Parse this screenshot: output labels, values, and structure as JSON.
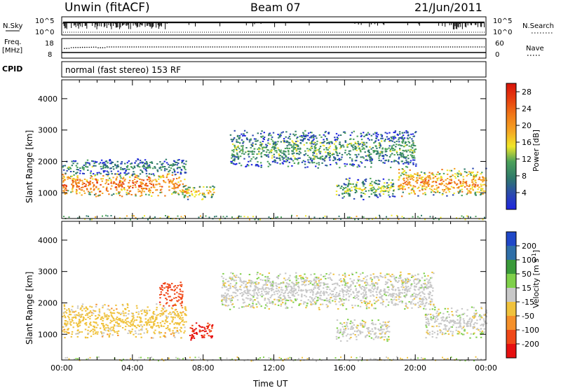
{
  "header": {
    "station": "Unwin (fitACF)",
    "beam": "Beam 07",
    "date": "21/Jun/2011"
  },
  "noise_panel": {
    "left_label": "N.Sky",
    "left_ticks": [
      "10^5",
      "10^0"
    ],
    "right_label": "N.Search",
    "right_ticks": [
      "10^5",
      "10^0"
    ]
  },
  "freq_panel": {
    "left_label": "Freq.",
    "left_unit": "[MHz]",
    "left_ticks": [
      "18",
      "8"
    ],
    "right_label": "Nave",
    "right_ticks": [
      "60",
      "0"
    ],
    "cpid_label": "CPID"
  },
  "cpid_text": "normal (fast stereo) 153 RF",
  "colors": {
    "power_scale": [
      "#1f25e0",
      "#2a48b0",
      "#2f7a6a",
      "#4ca25a",
      "#f0e628",
      "#f5a623",
      "#f07818",
      "#e63c0e",
      "#d8120a"
    ],
    "velocity_scale": [
      "#e61010",
      "#f04818",
      "#f5902a",
      "#f0c23c",
      "#c8c8c8",
      "#7fd04a",
      "#3a9a3a",
      "#2f6fa8",
      "#2048c8"
    ]
  },
  "chart_data": [
    {
      "type": "heatmap",
      "title": "Power",
      "ylabel": "Slant Range [km]",
      "ylim": [
        180,
        4600
      ],
      "yticks": [
        1000,
        2000,
        3000,
        4000
      ],
      "xlim_hours": [
        0,
        24
      ],
      "colorbar": {
        "label": "Power [dB]",
        "ticks": [
          "4",
          "8",
          "12",
          "16",
          "20",
          "24",
          "28"
        ],
        "range": [
          0,
          30
        ]
      },
      "echo_regions_hours_km": [
        {
          "t": [
            0,
            7.0
          ],
          "r": [
            900,
            1650
          ],
          "db": 24
        },
        {
          "t": [
            0,
            7.0
          ],
          "r": [
            1600,
            2100
          ],
          "db": 10
        },
        {
          "t": [
            6.8,
            8.6
          ],
          "r": [
            800,
            1300
          ],
          "db": 18
        },
        {
          "t": [
            9.5,
            20
          ],
          "r": [
            1800,
            3000
          ],
          "db": 12
        },
        {
          "t": [
            15.5,
            18.8
          ],
          "r": [
            800,
            1500
          ],
          "db": 14
        },
        {
          "t": [
            19,
            24
          ],
          "r": [
            900,
            1800
          ],
          "db": 22
        }
      ]
    },
    {
      "type": "heatmap",
      "title": "Velocity",
      "ylabel": "Slant Range [km]",
      "xlabel": "Time UT",
      "ylim": [
        180,
        4600
      ],
      "yticks": [
        1000,
        2000,
        3000,
        4000
      ],
      "xlim_hours": [
        0,
        24
      ],
      "xticks": [
        "00:00",
        "04:00",
        "08:00",
        "12:00",
        "16:00",
        "20:00",
        "00:00"
      ],
      "colorbar": {
        "label": "Velocity [m s^-1]",
        "ticks": [
          "-200",
          "-100",
          "-50",
          "-15",
          "15",
          "50",
          "100",
          "200"
        ]
      },
      "echo_regions_hours_km": [
        {
          "t": [
            0,
            7
          ],
          "r": [
            900,
            2000
          ],
          "v": -30
        },
        {
          "t": [
            7.2,
            8.5
          ],
          "r": [
            800,
            1400
          ],
          "v": -200
        },
        {
          "t": [
            5.5,
            6.8
          ],
          "r": [
            1900,
            2700
          ],
          "v": -180
        },
        {
          "t": [
            9,
            21
          ],
          "r": [
            1800,
            3000
          ],
          "v": 0
        },
        {
          "t": [
            15.5,
            18.5
          ],
          "r": [
            800,
            1500
          ],
          "v": 0
        },
        {
          "t": [
            20.5,
            24
          ],
          "r": [
            900,
            1900
          ],
          "v": 0
        }
      ]
    }
  ]
}
